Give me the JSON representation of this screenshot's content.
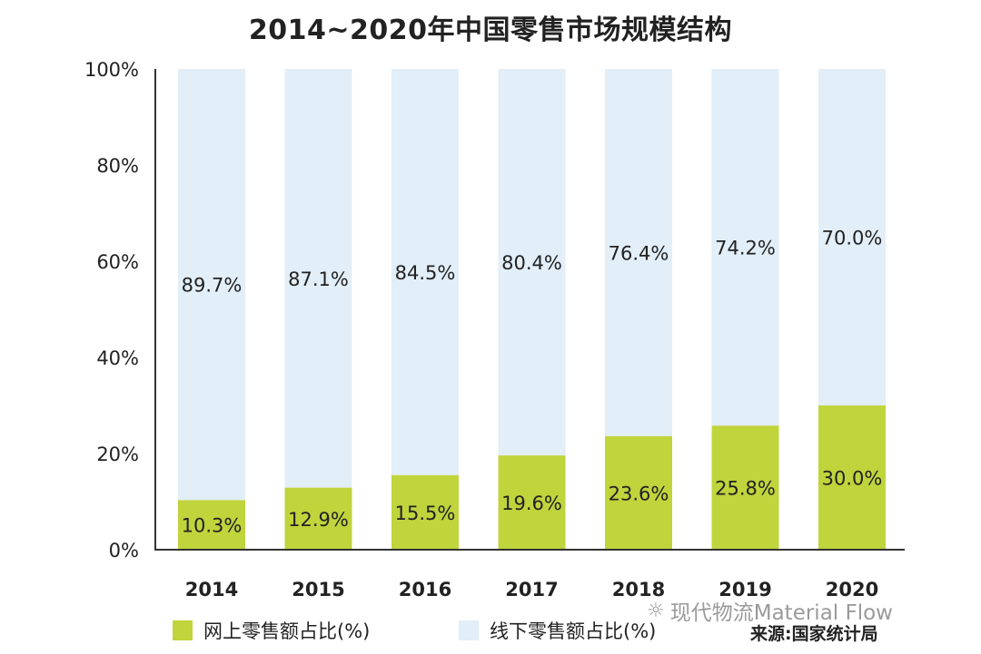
{
  "chart_data": {
    "type": "bar",
    "stacked": true,
    "title": "2014~2020年中国零售市场规模结构",
    "categories": [
      "2014",
      "2015",
      "2016",
      "2017",
      "2018",
      "2019",
      "2020"
    ],
    "series": [
      {
        "name": "网上零售额占比(%)",
        "color": "#c0d43c",
        "values": [
          10.3,
          12.9,
          15.5,
          19.6,
          23.6,
          25.8,
          30.0
        ],
        "labels": [
          "10.3%",
          "12.9%",
          "15.5%",
          "19.6%",
          "23.6%",
          "25.8%",
          "30.0%"
        ]
      },
      {
        "name": "线下零售额占比(%)",
        "color": "#e2eef8",
        "values": [
          89.7,
          87.1,
          84.5,
          80.4,
          76.4,
          74.2,
          70.0
        ],
        "labels": [
          "89.7%",
          "87.1%",
          "84.5%",
          "80.4%",
          "76.4%",
          "74.2%",
          "70.0%"
        ]
      }
    ],
    "ylim": [
      0,
      100
    ],
    "yticks": [
      "0%",
      "20%",
      "40%",
      "60%",
      "80%",
      "100%"
    ],
    "ytick_values": [
      0,
      20,
      40,
      60,
      80,
      100
    ],
    "grid": false,
    "legend_position": "bottom-left"
  },
  "legend": {
    "online_label": "网上零售额占比(%)",
    "offline_label": "线下零售额占比(%)"
  },
  "watermark": {
    "text": "现代物流Material Flow",
    "icon": "wechat-icon"
  },
  "source_note": "来源:国家统计局"
}
